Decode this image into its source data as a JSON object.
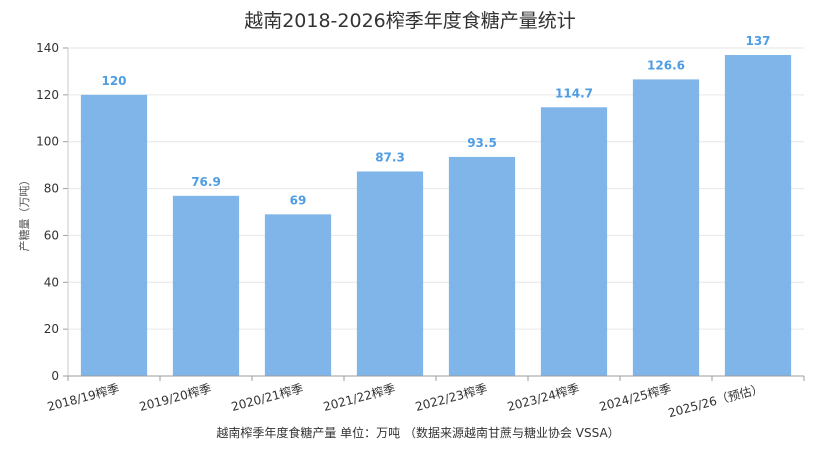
{
  "chart_data": {
    "type": "bar",
    "title": "越南2018-2026榨季年度食糖产量统计",
    "ylabel": "产糖量（万吨）",
    "xlabel": "越南榨季年度食糖产量 单位：万吨 （数据来源越南甘蔗与糖业协会 VSSA）",
    "categories": [
      "2018/19榨季",
      "2019/20榨季",
      "2020/21榨季",
      "2021/22榨季",
      "2022/23榨季",
      "2023/24榨季",
      "2024/25榨季",
      "2025/26（预估）"
    ],
    "values": [
      120,
      76.9,
      69,
      87.3,
      93.5,
      114.7,
      126.6,
      137
    ],
    "ylim": [
      0,
      140
    ],
    "yticks": [
      0,
      20,
      40,
      60,
      80,
      100,
      120,
      140
    ],
    "grid": true,
    "data_labels": true,
    "colors": {
      "bar": "#7fb5e8",
      "data_label": "#4f9de3",
      "grid": "#e6e6e6",
      "axis": "#9e9e9e",
      "text": "#333333"
    }
  }
}
